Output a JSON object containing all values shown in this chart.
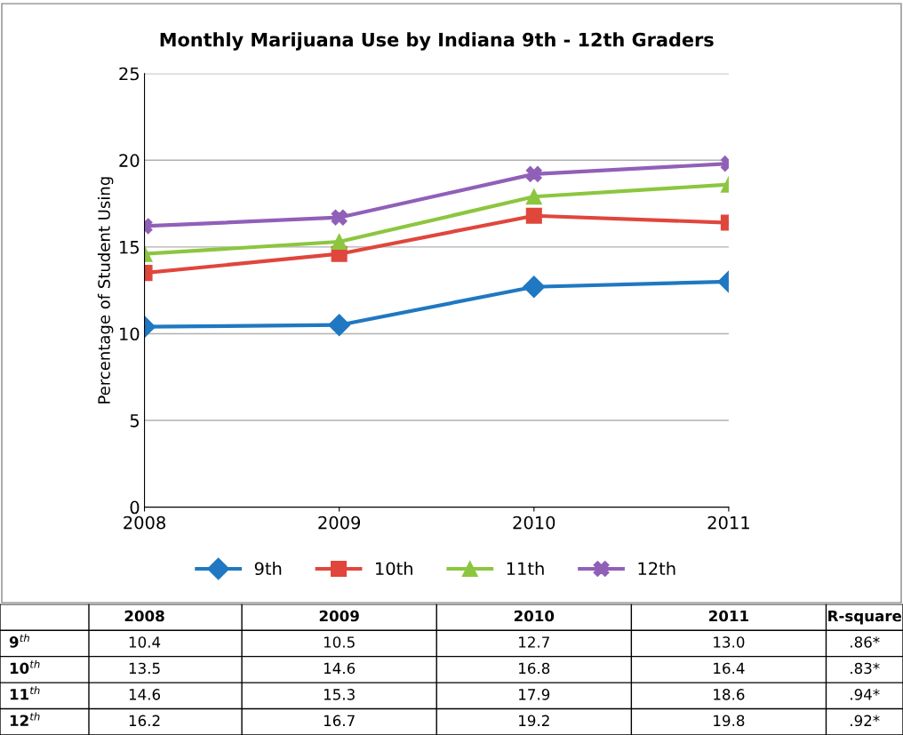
{
  "chart_data": {
    "type": "line",
    "title": "Monthly Marijuana Use by Indiana 9th - 12th Graders",
    "ylabel": "Percentage of Student Using",
    "categories": [
      "2008",
      "2009",
      "2010",
      "2011"
    ],
    "series": [
      {
        "name": "9th",
        "color": "#1f78c1",
        "marker": "diamond",
        "values": [
          10.4,
          10.5,
          12.7,
          13.0
        ],
        "value_labels": [
          "10.4",
          "10.5",
          "12.7",
          "13.0"
        ]
      },
      {
        "name": "10th",
        "color": "#e0463c",
        "marker": "square",
        "values": [
          13.5,
          14.6,
          16.8,
          16.4
        ],
        "value_labels": [
          "13.5",
          "14.6",
          "16.8",
          "16.4"
        ]
      },
      {
        "name": "11th",
        "color": "#8cc63f",
        "marker": "triangle",
        "values": [
          14.6,
          15.3,
          17.9,
          18.6
        ],
        "value_labels": [
          "14.6",
          "15.3",
          "17.9",
          "18.6"
        ]
      },
      {
        "name": "12th",
        "color": "#9060b8",
        "marker": "cross",
        "values": [
          16.2,
          16.7,
          19.2,
          19.8
        ],
        "value_labels": [
          "16.2",
          "16.7",
          "19.2",
          "19.8"
        ]
      }
    ],
    "ylim": [
      0,
      25
    ],
    "yticks": [
      0,
      5,
      10,
      15,
      20,
      25
    ],
    "grid": "y",
    "legend": "bottom",
    "line_style": "solid",
    "annotations": [
      "9$^{th}$",
      "10$^{th}$",
      "11$^{th}$",
      "12$^{th}$",
      "R-square",
      ".86*",
      ".83*",
      ".94*",
      ".92*"
    ]
  }
}
